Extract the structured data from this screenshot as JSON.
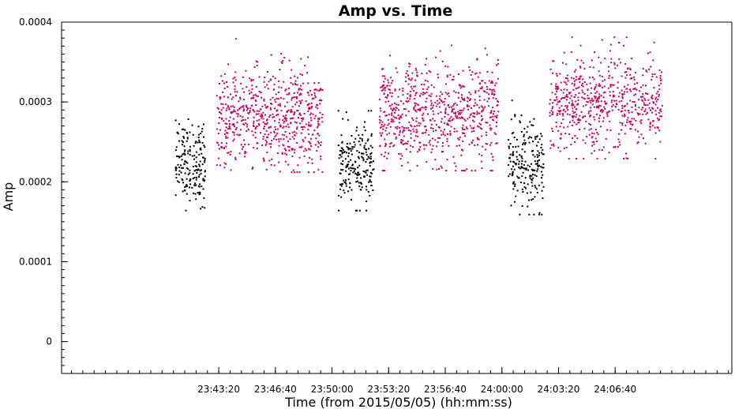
{
  "chart_data": {
    "type": "scatter",
    "title": "Amp vs. Time",
    "xlabel": "Time (from 2015/05/05) (hh:mm:ss)",
    "ylabel": "Amp",
    "x_unit": "seconds of day",
    "xlim": [
      84845,
      87212
    ],
    "ylim": [
      -4e-05,
      0.0004
    ],
    "x_ticks": [
      {
        "value": 85400,
        "label": "23:43:20"
      },
      {
        "value": 85600,
        "label": "23:46:40"
      },
      {
        "value": 85800,
        "label": "23:50:00"
      },
      {
        "value": 86000,
        "label": "23:53:20"
      },
      {
        "value": 86200,
        "label": "23:56:40"
      },
      {
        "value": 86400,
        "label": "24:00:00"
      },
      {
        "value": 86600,
        "label": "24:03:20"
      },
      {
        "value": 86800,
        "label": "24:06:40"
      }
    ],
    "y_ticks": [
      {
        "value": 0,
        "label": "0"
      },
      {
        "value": 0.0001,
        "label": "0.0001"
      },
      {
        "value": 0.0002,
        "label": "0.0002"
      },
      {
        "value": 0.0003,
        "label": "0.0003"
      },
      {
        "value": 0.0004,
        "label": "0.0004"
      }
    ],
    "grid": false,
    "series": [
      {
        "color": "#000000",
        "clusters": [
          {
            "x_range": [
              85245,
              85350
            ],
            "y_range": [
              0.000165,
              0.000298
            ],
            "y_center": 0.000225,
            "y_spread": 2.5e-05,
            "count": 180
          },
          {
            "x_range": [
              85820,
              85945
            ],
            "y_range": [
              0.000165,
              0.00029
            ],
            "y_center": 0.000222,
            "y_spread": 2.5e-05,
            "count": 200
          },
          {
            "x_range": [
              86420,
              86545
            ],
            "y_range": [
              0.00016,
              0.000308
            ],
            "y_center": 0.00022,
            "y_spread": 2.7e-05,
            "count": 200
          }
        ]
      },
      {
        "color": "#cc0066",
        "clusters": [
          {
            "x_range": [
              85390,
              85765
            ],
            "y_range": [
              0.000213,
              0.00038
            ],
            "y_center": 0.00028,
            "y_spread": 3.2e-05,
            "count": 640
          },
          {
            "x_range": [
              85965,
              86385
            ],
            "y_range": [
              0.000215,
              0.000382
            ],
            "y_center": 0.000285,
            "y_spread": 3.2e-05,
            "count": 700
          },
          {
            "x_range": [
              86565,
              86965
            ],
            "y_range": [
              0.00023,
              0.000382
            ],
            "y_center": 0.0003,
            "y_spread": 3e-05,
            "count": 620
          }
        ]
      }
    ]
  }
}
